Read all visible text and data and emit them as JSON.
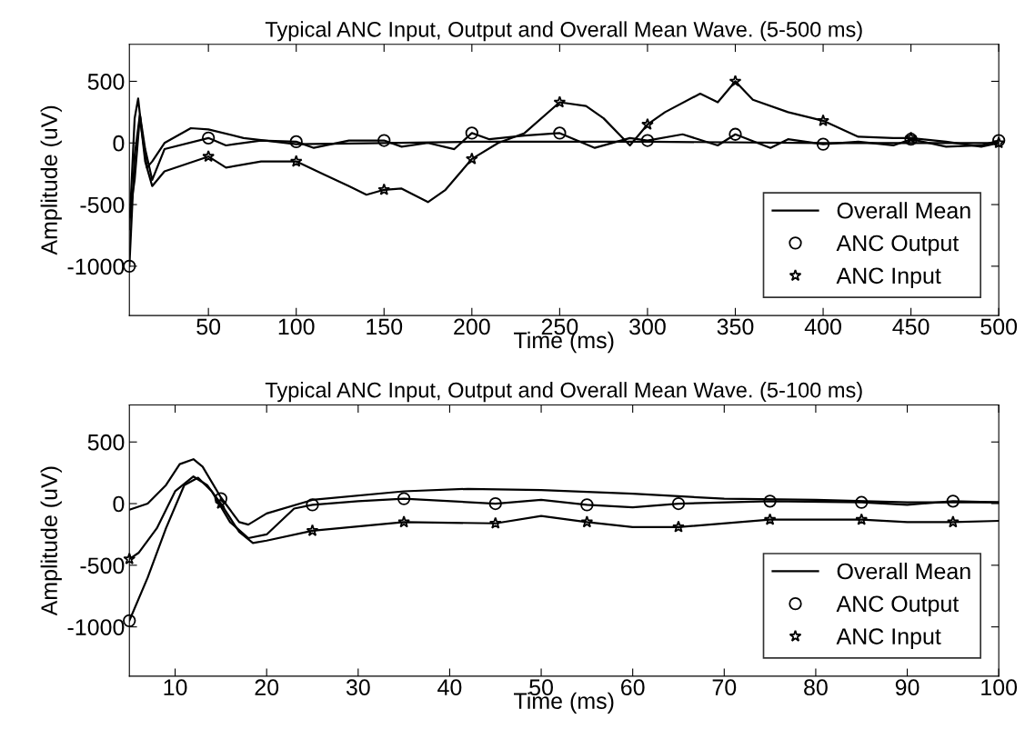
{
  "chart_data": [
    {
      "type": "line",
      "title": "Typical ANC Input, Output and Overall Mean Wave. (5-500 ms)",
      "xlabel": "Time (ms)",
      "ylabel": "Amplitude (uV)",
      "xlim": [
        5,
        500
      ],
      "ylim": [
        -1400,
        800
      ],
      "xticks": [
        50,
        100,
        150,
        200,
        250,
        300,
        350,
        400,
        450,
        500
      ],
      "yticks": [
        -1000,
        -500,
        0,
        500
      ],
      "grid": false,
      "legend": "bottom right",
      "series": [
        {
          "name": "Overall Mean",
          "color": "#000000",
          "x": [
            5,
            8,
            10,
            12,
            15,
            18,
            25,
            40,
            50,
            70,
            100,
            150,
            200,
            300,
            400,
            500
          ],
          "values": [
            -700,
            200,
            360,
            100,
            -200,
            -150,
            0,
            120,
            110,
            40,
            -10,
            0,
            10,
            10,
            0,
            0
          ]
        },
        {
          "color": "#000000",
          "x": [
            5,
            8,
            11,
            14,
            18,
            25,
            50,
            60,
            80,
            100,
            110,
            130,
            150,
            160,
            175,
            190,
            200,
            210,
            230,
            250,
            270,
            290,
            300,
            320,
            340,
            350,
            370,
            380,
            400,
            420,
            440,
            450,
            470,
            490,
            500
          ],
          "values": [
            -1000,
            -100,
            230,
            -50,
            -300,
            -50,
            40,
            -20,
            20,
            10,
            -40,
            20,
            20,
            -30,
            0,
            -50,
            80,
            30,
            60,
            80,
            -40,
            40,
            20,
            70,
            -20,
            70,
            -40,
            30,
            -10,
            10,
            -20,
            30,
            -30,
            -20,
            20
          ]
        },
        {
          "color": "#000000",
          "x": [
            5,
            8,
            11,
            14,
            18,
            25,
            50,
            60,
            80,
            100,
            115,
            130,
            140,
            150,
            160,
            175,
            185,
            200,
            215,
            230,
            250,
            265,
            275,
            290,
            300,
            310,
            330,
            340,
            350,
            360,
            380,
            400,
            420,
            440,
            450,
            470,
            490,
            500
          ],
          "values": [
            -600,
            -300,
            220,
            -150,
            -350,
            -230,
            -110,
            -200,
            -150,
            -150,
            -250,
            -350,
            -420,
            -380,
            -370,
            -480,
            -380,
            -130,
            0,
            80,
            330,
            300,
            200,
            -20,
            150,
            250,
            400,
            330,
            500,
            350,
            250,
            180,
            50,
            40,
            40,
            10,
            -30,
            0
          ]
        },
        {
          "name": "ANC Output",
          "type": "scatter",
          "marker": "circle",
          "color": "#000000",
          "x": [
            5,
            50,
            100,
            150,
            200,
            250,
            300,
            350,
            400,
            450,
            500
          ],
          "values": [
            -1000,
            40,
            10,
            20,
            80,
            80,
            20,
            70,
            -10,
            30,
            20
          ]
        },
        {
          "name": "ANC Input",
          "type": "scatter",
          "marker": "star",
          "color": "#000000",
          "x": [
            50,
            100,
            150,
            200,
            250,
            300,
            350,
            400,
            450,
            500
          ],
          "values": [
            -110,
            -150,
            -380,
            -130,
            330,
            150,
            500,
            180,
            40,
            0
          ]
        }
      ]
    },
    {
      "type": "line",
      "title": "Typical ANC Input, Output and Overall Mean Wave. (5-100 ms)",
      "xlabel": "Time (ms)",
      "ylabel": "Amplitude (uV)",
      "xlim": [
        5,
        100
      ],
      "ylim": [
        -1400,
        800
      ],
      "xticks": [
        10,
        20,
        30,
        40,
        50,
        60,
        70,
        80,
        90,
        100
      ],
      "yticks": [
        -1000,
        -500,
        0,
        500
      ],
      "grid": false,
      "legend": "bottom right",
      "series": [
        {
          "name": "Overall Mean",
          "color": "#000000",
          "x": [
            5,
            7,
            9,
            10.5,
            12,
            13,
            15,
            17,
            18,
            20,
            25,
            35,
            42,
            50,
            60,
            70,
            80,
            90,
            100
          ],
          "values": [
            -50,
            0,
            150,
            320,
            360,
            300,
            50,
            -150,
            -170,
            -80,
            30,
            100,
            120,
            110,
            80,
            40,
            30,
            10,
            10
          ]
        },
        {
          "color": "#000000",
          "x": [
            5,
            7,
            9,
            11,
            12.5,
            14,
            16,
            18,
            20,
            23,
            25,
            30,
            35,
            45,
            50,
            55,
            60,
            65,
            75,
            85,
            90,
            95,
            100
          ],
          "values": [
            -950,
            -600,
            -200,
            150,
            210,
            100,
            -150,
            -280,
            -250,
            -40,
            -10,
            20,
            40,
            0,
            30,
            -10,
            -30,
            0,
            20,
            10,
            -10,
            20,
            10
          ]
        },
        {
          "color": "#000000",
          "x": [
            5,
            6,
            8,
            10,
            12,
            13.5,
            15,
            17,
            18.5,
            20,
            25,
            35,
            45,
            50,
            55,
            60,
            65,
            75,
            85,
            90,
            95,
            100
          ],
          "values": [
            -450,
            -400,
            -200,
            100,
            220,
            150,
            0,
            -230,
            -320,
            -300,
            -220,
            -150,
            -160,
            -100,
            -150,
            -190,
            -190,
            -130,
            -130,
            -150,
            -150,
            -140
          ]
        },
        {
          "name": "ANC Output",
          "type": "scatter",
          "marker": "circle",
          "color": "#000000",
          "x": [
            5,
            15,
            25,
            35,
            45,
            55,
            65,
            75,
            85,
            95
          ],
          "values": [
            -950,
            40,
            -10,
            40,
            0,
            -10,
            0,
            20,
            10,
            20
          ]
        },
        {
          "name": "ANC Input",
          "type": "scatter",
          "marker": "star",
          "color": "#000000",
          "x": [
            5,
            15,
            25,
            35,
            45,
            55,
            65,
            75,
            85,
            95
          ],
          "values": [
            -450,
            0,
            -220,
            -150,
            -160,
            -150,
            -190,
            -130,
            -130,
            -150
          ]
        }
      ]
    }
  ]
}
